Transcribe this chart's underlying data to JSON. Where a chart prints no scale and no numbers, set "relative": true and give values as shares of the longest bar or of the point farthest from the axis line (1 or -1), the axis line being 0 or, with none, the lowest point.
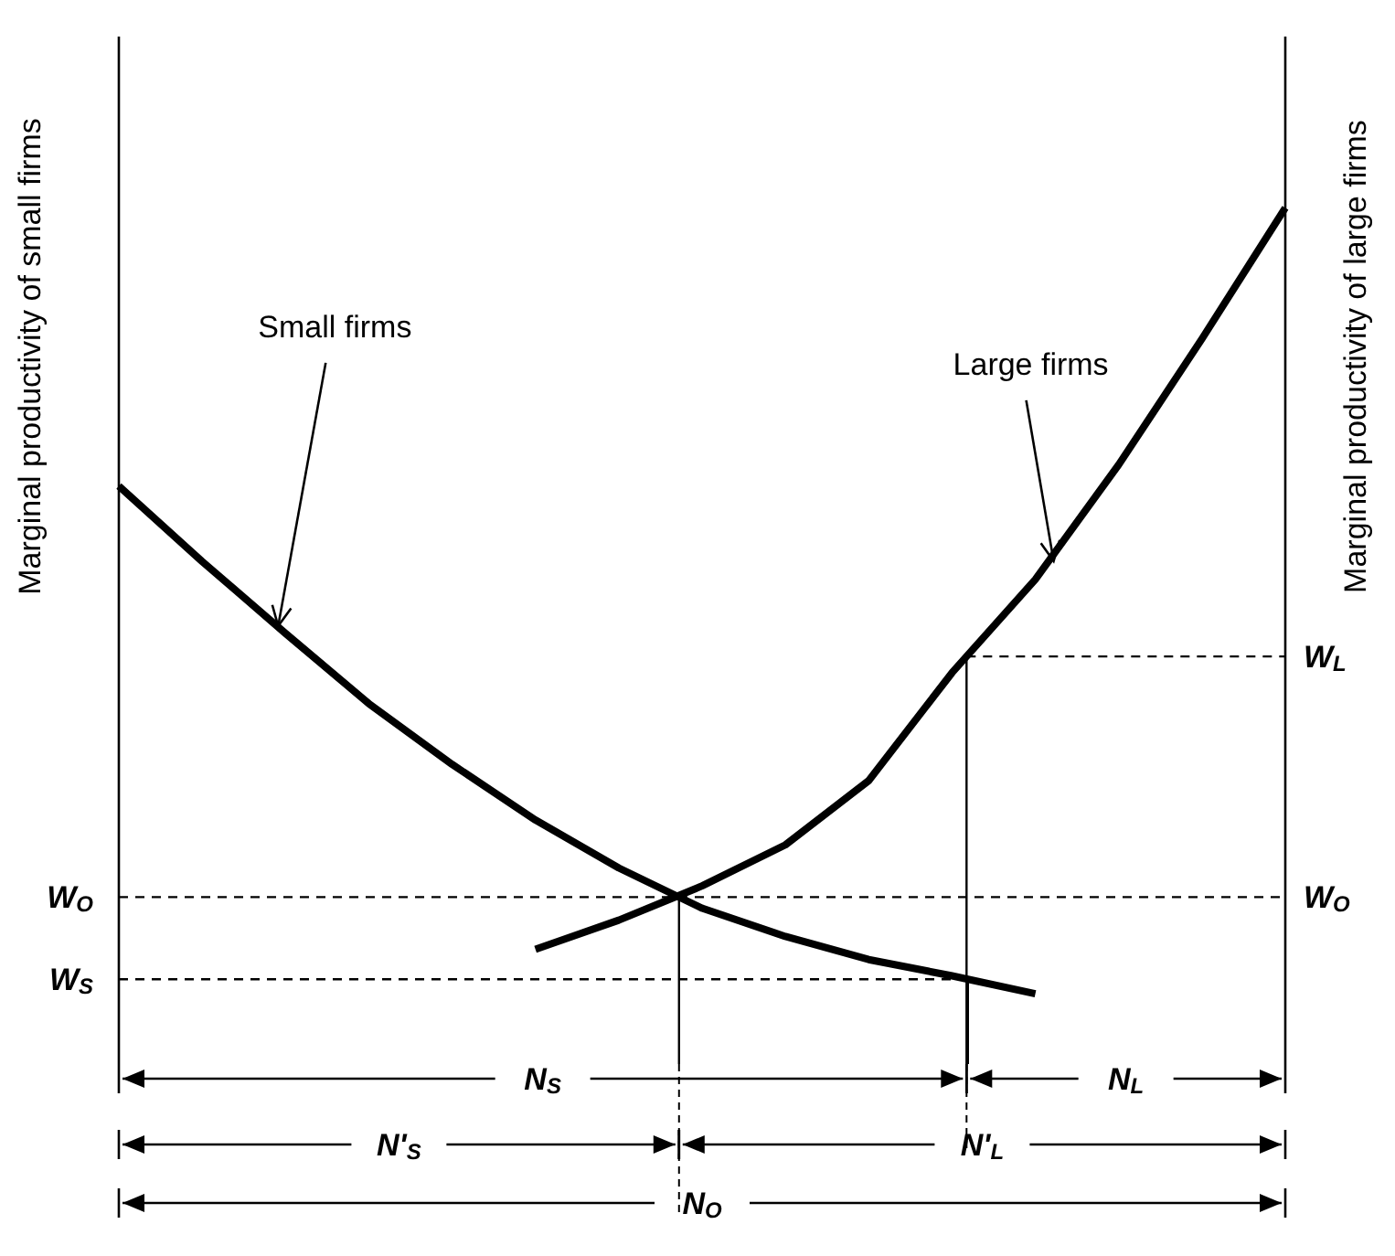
{
  "chart_data": {
    "type": "line",
    "relative": true,
    "ylabel": "Marginal productivity of small firms",
    "y2label": "Marginal productivity of large firms",
    "marker": "none",
    "line_style": "solid",
    "categories": [
      null,
      null,
      null,
      null,
      null,
      null,
      null,
      null,
      null,
      null,
      null,
      null,
      null,
      null,
      null
    ],
    "series": [
      {
        "name": "Small firms",
        "color": "#000000",
        "values": [
          0.675,
          0.587,
          0.503,
          0.421,
          0.35,
          0.285,
          0.229,
          0.182,
          0.149,
          0.122,
          0.103,
          0.082,
          null,
          null,
          null
        ]
      },
      {
        "name": "Large firms",
        "color": "#000000",
        "values": [
          null,
          null,
          null,
          null,
          null,
          0.134,
          0.168,
          0.208,
          0.256,
          0.331,
          0.457,
          0.566,
          0.7,
          0.847,
          1
        ]
      }
    ],
    "ref_lines": [
      {
        "axis": "y",
        "value": 0.195,
        "label": "W$_{O}$",
        "line_style": "dashed"
      },
      {
        "axis": "y",
        "value": 0.099,
        "label": "W$_{S}$",
        "line_style": "dashed"
      },
      {
        "axis": "y",
        "value": 0.476,
        "label": "W$_{L}$",
        "line_style": "dashed"
      }
    ],
    "annotations": [
      "N$_{S}$",
      "N$_{L}$",
      "N'$_{S}$",
      "N'$_{L}$",
      "N$_{O}$"
    ]
  }
}
